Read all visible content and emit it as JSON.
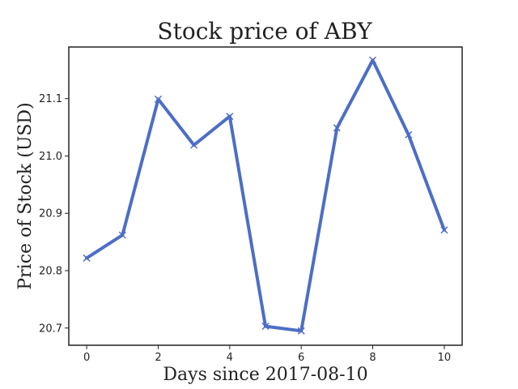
{
  "chart_data": {
    "type": "line",
    "title": "Stock price of ABY",
    "xlabel": "Days since 2017-08-10",
    "ylabel": "Price of Stock (USD)",
    "xlim": [
      -0.5,
      10.5
    ],
    "ylim": [
      20.67,
      21.19
    ],
    "xticks": [
      0,
      2,
      4,
      6,
      8,
      10
    ],
    "yticks": [
      20.7,
      20.8,
      20.9,
      21.0,
      21.1
    ],
    "ytick_labels": [
      "20.7",
      "20.8",
      "20.9",
      "21.0",
      "21.1"
    ],
    "grid": false,
    "marker": "x",
    "line_color": "#4C6EC6",
    "series": [
      {
        "x": [
          0,
          1,
          2,
          3,
          4,
          5,
          6,
          7,
          8,
          9,
          10
        ],
        "values": [
          20.822,
          20.862,
          21.099,
          21.019,
          21.069,
          20.703,
          20.695,
          21.049,
          21.167,
          21.037,
          20.871
        ]
      }
    ]
  }
}
